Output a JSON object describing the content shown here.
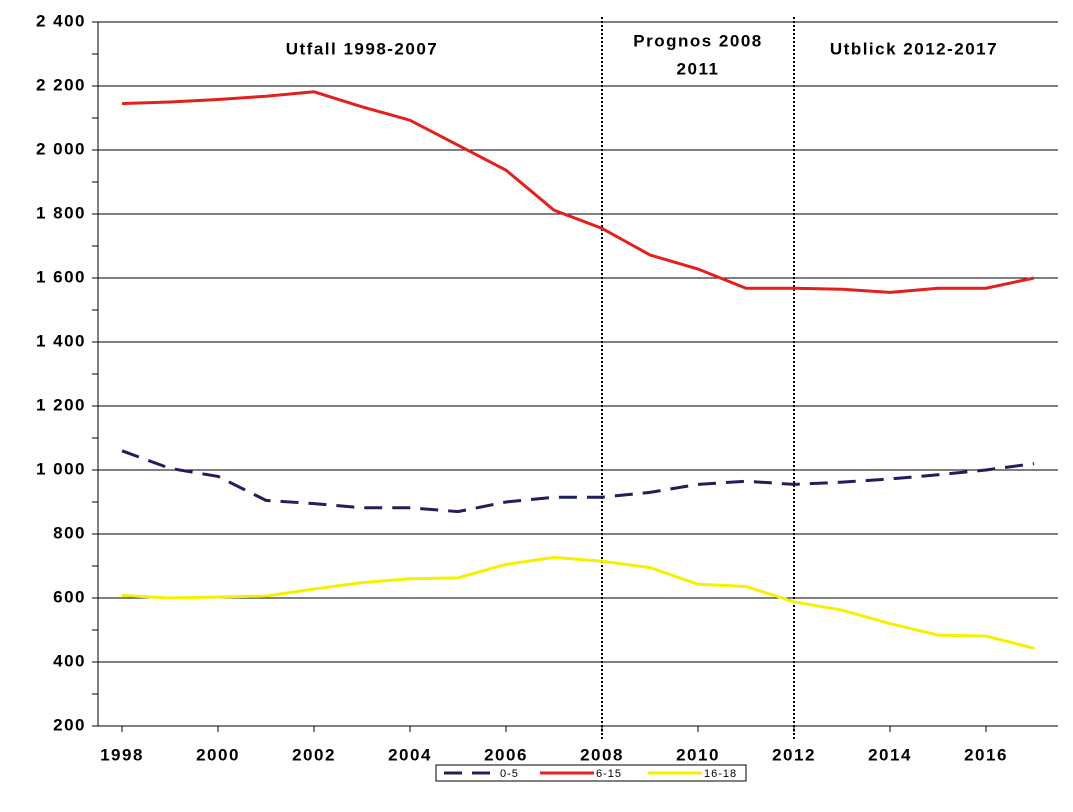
{
  "chart_data": {
    "type": "line",
    "x": [
      1998,
      1999,
      2000,
      2001,
      2002,
      2003,
      2004,
      2005,
      2006,
      2007,
      2008,
      2009,
      2010,
      2011,
      2012,
      2013,
      2014,
      2015,
      2016,
      2017
    ],
    "series": [
      {
        "name": "0-5",
        "color": "#1f1f5c",
        "dash": true,
        "values": [
          1060,
          1005,
          980,
          905,
          895,
          882,
          882,
          870,
          900,
          915,
          915,
          930,
          955,
          965,
          955,
          962,
          972,
          985,
          1000,
          1020
        ]
      },
      {
        "name": "6-15",
        "color": "#e3201b",
        "dash": false,
        "values": [
          2145,
          2150,
          2158,
          2168,
          2182,
          2135,
          2093,
          2015,
          1937,
          1812,
          1755,
          1672,
          1628,
          1568,
          1568,
          1565,
          1555,
          1568,
          1568,
          1600
        ]
      },
      {
        "name": "16-18",
        "color": "#f5f000",
        "dash": false,
        "values": [
          608,
          600,
          603,
          606,
          628,
          648,
          660,
          663,
          705,
          727,
          715,
          695,
          643,
          636,
          588,
          562,
          520,
          484,
          481,
          443
        ]
      }
    ],
    "xlim": [
      1997.5,
      2017.5
    ],
    "xticks": [
      1998,
      2000,
      2002,
      2004,
      2006,
      2008,
      2010,
      2012,
      2014,
      2016
    ],
    "ylim": [
      200,
      2400
    ],
    "yticks": [
      {
        "value": 200,
        "label": "200"
      },
      {
        "value": 400,
        "label": "400"
      },
      {
        "value": 600,
        "label": "600"
      },
      {
        "value": 800,
        "label": "800"
      },
      {
        "value": 1000,
        "label": "1 000"
      },
      {
        "value": 1200,
        "label": "1 200"
      },
      {
        "value": 1400,
        "label": "1 400"
      },
      {
        "value": 1600,
        "label": "1 600"
      },
      {
        "value": 1800,
        "label": "1 800"
      },
      {
        "value": 2000,
        "label": "2 000"
      },
      {
        "value": 2200,
        "label": "2 200"
      },
      {
        "value": 2400,
        "label": "2 400"
      }
    ],
    "grid": true,
    "dividers": [
      2008,
      2012
    ],
    "annotations": [
      {
        "lines": [
          "Utfall 1998-2007"
        ],
        "x": 2003
      },
      {
        "lines": [
          "Prognos 2008",
          "2011"
        ],
        "x": 2010
      },
      {
        "lines": [
          "Utblick 2012-2017"
        ],
        "x": 2014.5
      }
    ],
    "legend": "bottom"
  }
}
